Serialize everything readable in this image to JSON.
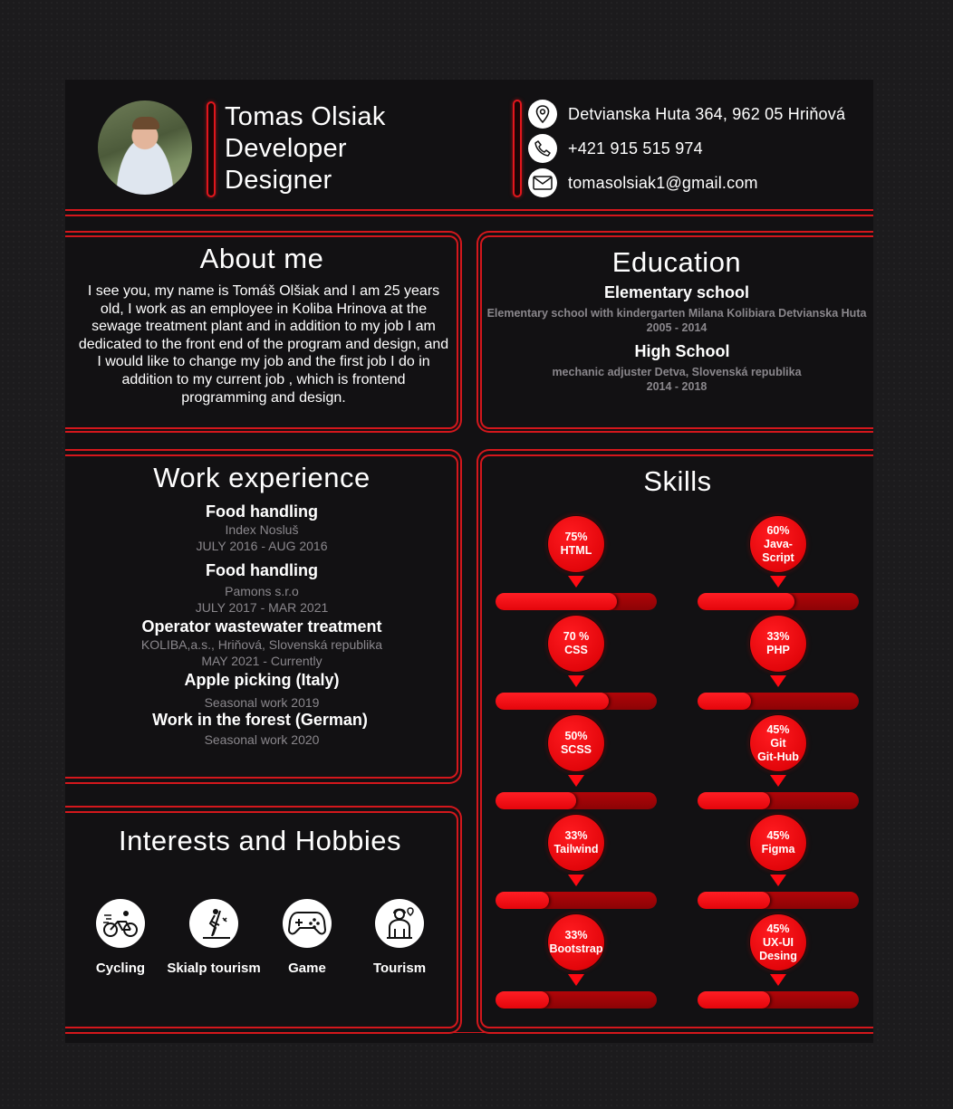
{
  "header": {
    "name_lines": [
      "Tomas Olsiak",
      "Developer",
      "Designer"
    ],
    "contacts": [
      {
        "icon": "location-pin-icon",
        "text": "Detvianska Huta 364, 962 05 Hriňová"
      },
      {
        "icon": "phone-icon",
        "text": "+421 915 515 974"
      },
      {
        "icon": "mail-icon",
        "text": "tomasolsiak1@gmail.com"
      }
    ]
  },
  "about": {
    "title": "About me",
    "text": "I see you, my name is Tomáš Olšiak and I am 25 years old, I work as an employee in Koliba Hrinova at the sewage treatment plant and in addition to my job I am dedicated to the front end of the program and design, and I would like to change my job and the first job I do in addition to my current job , which is frontend programming and design."
  },
  "education": {
    "title": "Education",
    "items": [
      {
        "school": "Elementary school",
        "detail": "Elementary school with kindergarten Milana Kolibiara Detvianska Huta",
        "years": "2005 - 2014"
      },
      {
        "school": "High School",
        "detail": "mechanic adjuster Detva, Slovenská republika",
        "years": "2014 - 2018"
      }
    ]
  },
  "work": {
    "title": "Work experience",
    "items": [
      {
        "title": "Food handling",
        "company": "Index Nosluš",
        "period": "JULY 2016 - AUG 2016"
      },
      {
        "title": "Food handling",
        "company": "Pamons s.r.o",
        "period": "JULY 2017 - MAR 2021"
      },
      {
        "title": "Operator wastewater treatment",
        "company": "KOLIBA,a.s., Hriňová, Slovenská republika",
        "period": "MAY 2021 - Currently"
      },
      {
        "title": "Apple picking (Italy)",
        "company": "Seasonal work 2019",
        "period": ""
      },
      {
        "title": "Work in the forest (German)",
        "company": "Seasonal work 2020",
        "period": ""
      }
    ]
  },
  "hobbies": {
    "title": "Interests and Hobbies",
    "items": [
      {
        "label": "Cycling",
        "icon": "cycling-icon"
      },
      {
        "label": "Skialp tourism",
        "icon": "ski-touring-icon"
      },
      {
        "label": "Game",
        "icon": "gamepad-icon"
      },
      {
        "label": "Tourism",
        "icon": "hiker-icon"
      }
    ]
  },
  "skills": {
    "title": "Skills",
    "accent": "#e1161c",
    "items": [
      {
        "percent_text": "75%",
        "name": "HTML",
        "level": 0.75
      },
      {
        "percent_text": "60%",
        "name": "Java-\nScript",
        "level": 0.6
      },
      {
        "percent_text": "70 %",
        "name": "CSS",
        "level": 0.7
      },
      {
        "percent_text": "33%",
        "name": "PHP",
        "level": 0.33
      },
      {
        "percent_text": "50%",
        "name": "SCSS",
        "level": 0.5
      },
      {
        "percent_text": "45%",
        "name": "Git\nGit-Hub",
        "level": 0.45
      },
      {
        "percent_text": "33%",
        "name": "Tailwind",
        "level": 0.33
      },
      {
        "percent_text": "45%",
        "name": "Figma",
        "level": 0.45
      },
      {
        "percent_text": "33%",
        "name": "Bootstrap",
        "level": 0.33
      },
      {
        "percent_text": "45%",
        "name": "UX-UI\nDesing",
        "level": 0.45
      }
    ]
  }
}
